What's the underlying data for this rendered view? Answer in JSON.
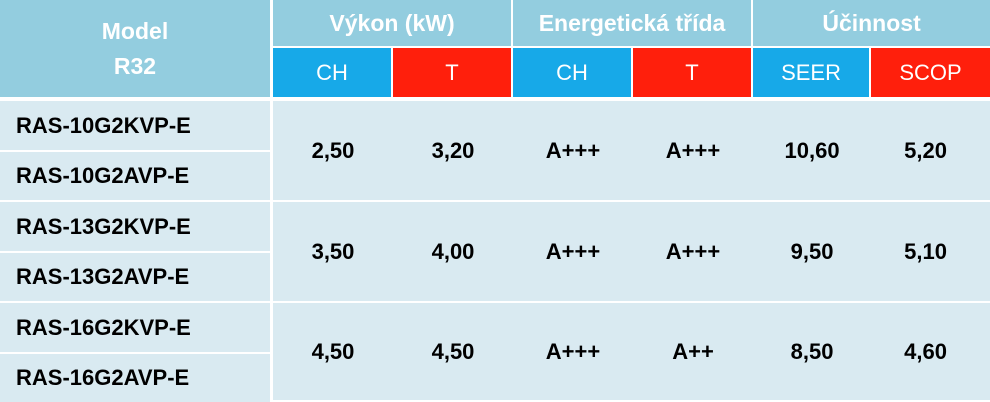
{
  "header": {
    "model": "Model",
    "model_sub": "R32",
    "vykon": "Výkon (kW)",
    "trida": "Energetická třída",
    "ucinnost": "Účinnost"
  },
  "subheader": {
    "vykon_ch": "CH",
    "vykon_t": "T",
    "trida_ch": "CH",
    "trida_t": "T",
    "seer": "SEER",
    "scop": "SCOP"
  },
  "colors": {
    "header_bg": "#93cddf",
    "blue_sub": "#17a9e8",
    "red_sub": "#ff1f0c",
    "row_bg": "#d9eaf1"
  },
  "groups": [
    {
      "models": [
        "RAS-10G2KVP-E",
        "RAS-10G2AVP-E"
      ],
      "vykon_ch": "2,50",
      "vykon_t": "3,20",
      "trida_ch": "A+++",
      "trida_t": "A+++",
      "seer": "10,60",
      "scop": "5,20"
    },
    {
      "models": [
        "RAS-13G2KVP-E",
        "RAS-13G2AVP-E"
      ],
      "vykon_ch": "3,50",
      "vykon_t": "4,00",
      "trida_ch": "A+++",
      "trida_t": "A+++",
      "seer": "9,50",
      "scop": "5,10"
    },
    {
      "models": [
        "RAS-16G2KVP-E",
        "RAS-16G2AVP-E"
      ],
      "vykon_ch": "4,50",
      "vykon_t": "4,50",
      "trida_ch": "A+++",
      "trida_t": "A++",
      "seer": "8,50",
      "scop": "4,60"
    }
  ]
}
